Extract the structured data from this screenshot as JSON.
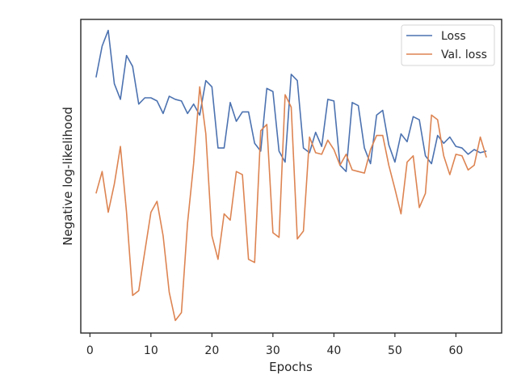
{
  "chart_data": {
    "type": "line",
    "xlabel": "Epochs",
    "ylabel": "Negative log-likelihood",
    "xlim": [
      -1.5,
      67.5
    ],
    "ylim": [
      0,
      100
    ],
    "xticks": [
      0,
      10,
      20,
      30,
      40,
      50,
      60
    ],
    "show_yticks": false,
    "grid": false,
    "legend_position": "upper right",
    "x": [
      1,
      2,
      3,
      4,
      5,
      6,
      7,
      8,
      9,
      10,
      11,
      12,
      13,
      14,
      15,
      16,
      17,
      18,
      19,
      20,
      21,
      22,
      23,
      24,
      25,
      26,
      27,
      28,
      29,
      30,
      31,
      32,
      33,
      34,
      35,
      36,
      37,
      38,
      39,
      40,
      41,
      42,
      43,
      44,
      45,
      46,
      47,
      48,
      49,
      50,
      51,
      52,
      53,
      54,
      55,
      56,
      57,
      58,
      59,
      60,
      61,
      62,
      63,
      64,
      65
    ],
    "series": [
      {
        "name": "Loss",
        "color": "#4c72b0",
        "values": [
          81.5,
          91.5,
          96.5,
          79.5,
          74.5,
          88.5,
          85.0,
          73.0,
          75.0,
          75.0,
          74.0,
          70.0,
          75.5,
          74.5,
          74.0,
          70.0,
          73.0,
          69.5,
          80.5,
          78.5,
          59.0,
          59.0,
          73.5,
          67.5,
          70.5,
          70.5,
          60.5,
          58.0,
          78.0,
          77.0,
          58.0,
          54.5,
          82.5,
          80.5,
          59.0,
          57.5,
          64.0,
          59.5,
          74.5,
          74.0,
          53.5,
          51.5,
          73.5,
          72.5,
          59.0,
          54.0,
          69.5,
          71.0,
          60.0,
          54.5,
          63.5,
          61.0,
          69.0,
          68.0,
          56.5,
          54.0,
          63.0,
          60.5,
          62.5,
          59.5,
          59.0,
          57.0,
          58.5,
          57.5,
          58.0
        ]
      },
      {
        "name": "Val. loss",
        "color": "#dd8452",
        "values": [
          44.5,
          51.5,
          38.5,
          47.5,
          59.5,
          38.5,
          12.0,
          13.5,
          26.0,
          38.5,
          42.0,
          31.0,
          13.0,
          4.0,
          6.5,
          35.0,
          54.0,
          78.5,
          63.5,
          31.0,
          23.5,
          38.0,
          36.0,
          51.5,
          50.5,
          23.5,
          22.5,
          64.5,
          66.5,
          32.0,
          30.5,
          76.0,
          72.0,
          30.0,
          32.5,
          62.5,
          57.5,
          57.0,
          61.5,
          58.5,
          53.5,
          57.0,
          52.0,
          51.5,
          51.0,
          58.5,
          63.0,
          63.0,
          53.5,
          46.0,
          38.0,
          54.5,
          56.5,
          40.0,
          44.5,
          69.5,
          68.0,
          56.5,
          50.5,
          57.0,
          56.5,
          52.0,
          53.5,
          62.5,
          56.0
        ]
      }
    ]
  }
}
